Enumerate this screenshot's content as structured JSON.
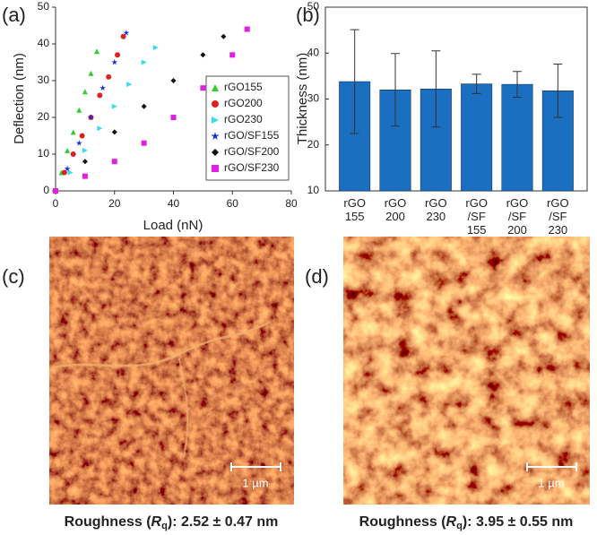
{
  "chart_data": [
    {
      "type": "scatter",
      "panel_label": "(a)",
      "x_label": "Load (nN)",
      "y_label": "Deflection (nm)",
      "xlim": [
        0,
        80
      ],
      "xticks": [
        0,
        20,
        40,
        60,
        80
      ],
      "ylim": [
        0,
        50
      ],
      "yticks": [
        0,
        10,
        20,
        30,
        40,
        50
      ],
      "legend": "lower right",
      "series": [
        {
          "name": "rGO155",
          "color": "#33cc33",
          "marker": "triangle",
          "x": [
            0,
            2,
            4,
            6,
            8,
            10,
            12,
            14
          ],
          "values": [
            0,
            5,
            11,
            16,
            22,
            27,
            32,
            38
          ]
        },
        {
          "name": "rGO200",
          "color": "#e02020",
          "marker": "circle",
          "x": [
            0,
            3,
            6,
            9,
            12,
            15,
            18,
            21,
            23
          ],
          "values": [
            0,
            5,
            10,
            15,
            20,
            26,
            31,
            37,
            42
          ]
        },
        {
          "name": "rGO230",
          "color": "#33ddee",
          "marker": "triangle-right",
          "x": [
            0,
            5,
            10,
            15,
            20,
            25,
            30,
            34
          ],
          "values": [
            0,
            5,
            11,
            17,
            23,
            29,
            35,
            39
          ]
        },
        {
          "name": "rGO/SF155",
          "color": "#1a2ee0",
          "marker": "star",
          "x": [
            0,
            4,
            8,
            12,
            16,
            20,
            24
          ],
          "values": [
            0,
            6,
            13,
            20,
            28,
            35,
            43
          ]
        },
        {
          "name": "rGO/SF200",
          "color": "#111111",
          "marker": "diamond",
          "x": [
            0,
            10,
            20,
            30,
            40,
            50,
            57
          ],
          "values": [
            0,
            8,
            16,
            23,
            30,
            37,
            42
          ]
        },
        {
          "name": "rGO/SF230",
          "color": "#e020e0",
          "marker": "square",
          "x": [
            0,
            10,
            20,
            30,
            40,
            50,
            60,
            65
          ],
          "values": [
            0,
            4,
            8,
            13,
            20,
            28,
            37,
            44
          ]
        }
      ]
    },
    {
      "type": "bar",
      "panel_label": "(b)",
      "y_label": "Thickness (nm)",
      "categories": [
        "rGO\n155",
        "rGO\n200",
        "rGO\n230",
        "rGO\n/SF\n155",
        "rGO\n/SF\n200",
        "rGO\n/SF\n230"
      ],
      "values": [
        33.8,
        32,
        32.2,
        33.3,
        33.2,
        31.8
      ],
      "errors": [
        11.3,
        7.9,
        8.3,
        2.1,
        2.8,
        5.8
      ],
      "color": "#1a6fc0",
      "ylim": [
        10,
        50
      ],
      "yticks": [
        10,
        20,
        30,
        40,
        50
      ]
    }
  ],
  "images": [
    {
      "panel_label": "(c)",
      "scale_bar": "1 µm",
      "caption": {
        "prefix": "Roughness (",
        "symbol": "R",
        "subscript": "q",
        "suffix": "): 2.52 ± 0.47 nm"
      }
    },
    {
      "panel_label": "(d)",
      "scale_bar": "1 µm",
      "caption": {
        "prefix": "Roughness (",
        "symbol": "R",
        "subscript": "q",
        "suffix": "): 3.95 ± 0.55 nm"
      }
    }
  ]
}
